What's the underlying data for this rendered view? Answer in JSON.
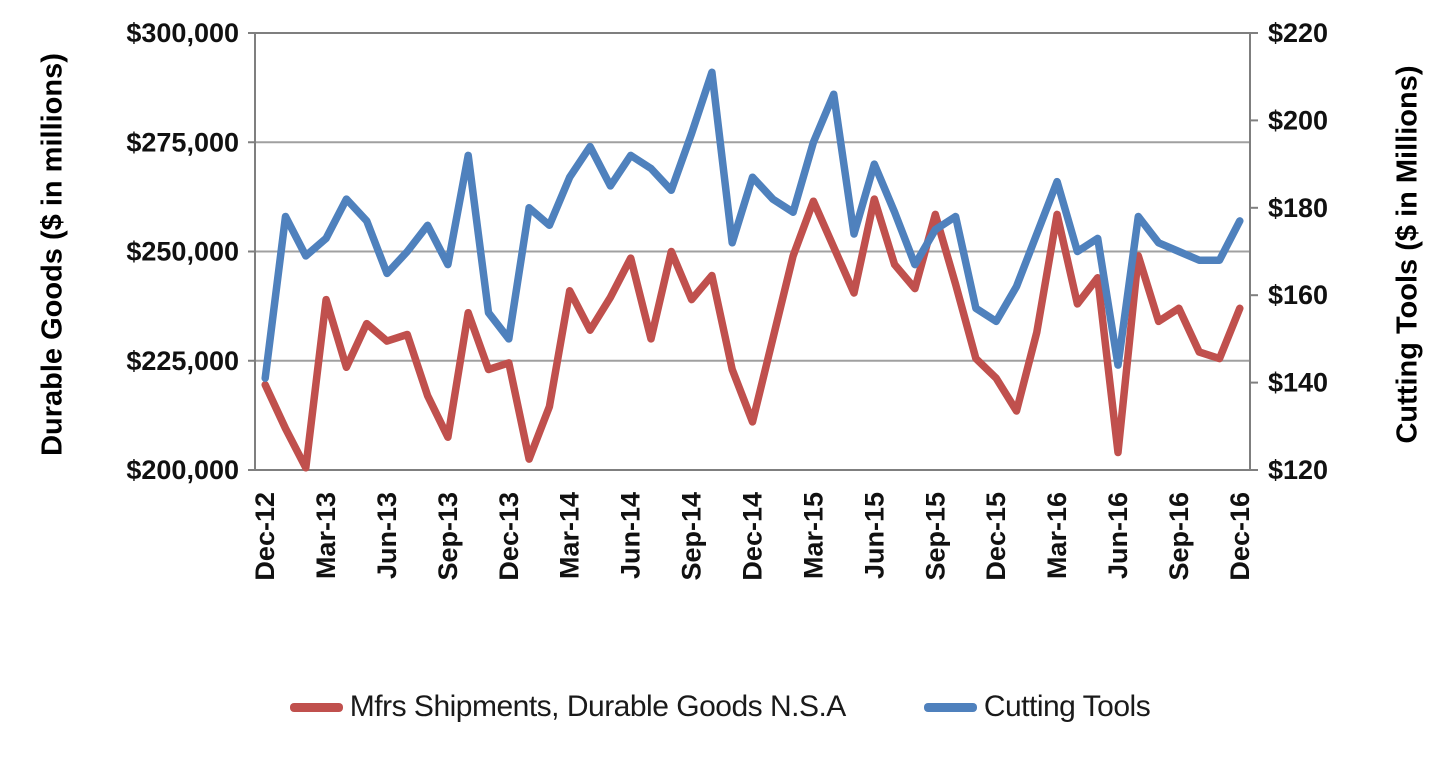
{
  "chart_data": {
    "type": "line",
    "title": "",
    "x_labels": [
      "Dec-12",
      "Jan-13",
      "Feb-13",
      "Mar-13",
      "Apr-13",
      "May-13",
      "Jun-13",
      "Jul-13",
      "Aug-13",
      "Sep-13",
      "Oct-13",
      "Nov-13",
      "Dec-13",
      "Jan-14",
      "Feb-14",
      "Mar-14",
      "Apr-14",
      "May-14",
      "Jun-14",
      "Jul-14",
      "Aug-14",
      "Sep-14",
      "Oct-14",
      "Nov-14",
      "Dec-14",
      "Jan-15",
      "Feb-15",
      "Mar-15",
      "Apr-15",
      "May-15",
      "Jun-15",
      "Jul-15",
      "Aug-15",
      "Sep-15",
      "Oct-15",
      "Nov-15",
      "Dec-15",
      "Jan-16",
      "Feb-16",
      "Mar-16",
      "Apr-16",
      "May-16",
      "Jun-16",
      "Jul-16",
      "Aug-16",
      "Sep-16",
      "Oct-16",
      "Nov-16",
      "Dec-16"
    ],
    "x_tick_every": 3,
    "left_axis": {
      "title": "Durable Goods ($ in millions)",
      "min": 200000,
      "max": 300000,
      "step": 25000,
      "tick_labels": [
        "$300,000",
        "$275,000",
        "$250,000",
        "$225,000",
        "$200,000"
      ]
    },
    "right_axis": {
      "title": "Cutting Tools ($ in Millions)",
      "min": 120,
      "max": 220,
      "step": 20,
      "tick_labels": [
        "$220",
        "$200",
        "$180",
        "$160",
        "$140",
        "$120"
      ]
    },
    "grid": {
      "gridline_color": "#a0a0a0",
      "border_color": "#7f7f7f",
      "show_horizontal": true
    },
    "legend_position": "bottom",
    "series": [
      {
        "name": "Mfrs Shipments, Durable Goods N.S.A",
        "color": "#C0504D",
        "axis": "left",
        "values": [
          219500,
          209500,
          200500,
          239000,
          223500,
          233500,
          229500,
          231000,
          217000,
          207500,
          236000,
          223000,
          224500,
          202500,
          214500,
          241000,
          232000,
          239500,
          248500,
          230000,
          250000,
          239000,
          244500,
          223000,
          211000,
          230000,
          249000,
          261500,
          251000,
          240500,
          262000,
          247000,
          241500,
          258500,
          242500,
          225500,
          221000,
          213500,
          231500,
          258500,
          238000,
          244000,
          204000,
          249000,
          234000,
          237000,
          227000,
          225500,
          237000
        ]
      },
      {
        "name": "Cutting Tools",
        "color": "#4F81BD",
        "axis": "right",
        "values": [
          141,
          178,
          169,
          173,
          182,
          177,
          165,
          170,
          176,
          167,
          192,
          156,
          150,
          180,
          176,
          187,
          194,
          185,
          192,
          189,
          184,
          197,
          211,
          172,
          187,
          182,
          179,
          195,
          206,
          174,
          190,
          179,
          167,
          175,
          178,
          157,
          154,
          162,
          174,
          186,
          170,
          173,
          144,
          178,
          172,
          170,
          168,
          168,
          177
        ]
      }
    ]
  }
}
